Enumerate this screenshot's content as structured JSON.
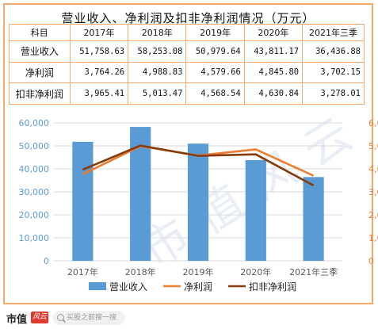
{
  "title": "营业收入、净利润及扣非净利润情况（万元）",
  "table": {
    "headers": [
      "科目",
      "2017年",
      "2018年",
      "2019年",
      "2020年",
      "2021年三季"
    ],
    "rows": [
      {
        "label": "营业收入",
        "values": [
          "51,758.63",
          "58,253.08",
          "50,979.64",
          "43,811.17",
          "36,436.88"
        ]
      },
      {
        "label": "净利润",
        "values": [
          "3,764.26",
          "4,988.83",
          "4,579.66",
          "4,845.80",
          "3,702.15"
        ]
      },
      {
        "label": "扣非净利润",
        "values": [
          "3,965.41",
          "5,013.47",
          "4,568.54",
          "4,630.84",
          "3,278.01"
        ]
      }
    ]
  },
  "chart_data": {
    "type": "bar",
    "categories": [
      "2017年",
      "2018年",
      "2019年",
      "2020年",
      "2021年三季"
    ],
    "series": [
      {
        "name": "营业收入",
        "type": "bar",
        "axis": "left",
        "color": "#5b9bd5",
        "values": [
          51758.63,
          58253.08,
          50979.64,
          43811.17,
          36436.88
        ]
      },
      {
        "name": "净利润",
        "type": "line",
        "axis": "right",
        "color": "#ed7d31",
        "values": [
          3764.26,
          4988.83,
          4579.66,
          4845.8,
          3702.15
        ]
      },
      {
        "name": "扣非净利润",
        "type": "line",
        "axis": "right",
        "color": "#843c0c",
        "values": [
          3965.41,
          5013.47,
          4568.54,
          4630.84,
          3278.01
        ]
      }
    ],
    "y_left": {
      "min": 0,
      "max": 60000,
      "ticks": [
        "0",
        "10,000",
        "20,000",
        "30,000",
        "40,000",
        "50,000",
        "60,000"
      ],
      "color": "#5b9bd5"
    },
    "y_right": {
      "min": 0,
      "max": 6000,
      "ticks": [
        "0",
        "1,000",
        "2,000",
        "3,000",
        "4,000",
        "5,000",
        "6,000"
      ],
      "color": "#ed7d31"
    },
    "grid": true,
    "legend": "bottom"
  },
  "watermark": "市值风云",
  "footer": {
    "logo_text": "市值",
    "logo_badge": "风云",
    "search_placeholder": "买股之前搜一搜"
  }
}
